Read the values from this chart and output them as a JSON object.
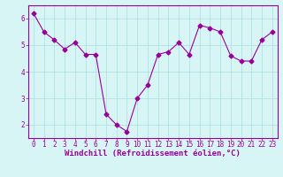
{
  "x": [
    0,
    1,
    2,
    3,
    4,
    5,
    6,
    7,
    8,
    9,
    10,
    11,
    12,
    13,
    14,
    15,
    16,
    17,
    18,
    19,
    20,
    21,
    22,
    23
  ],
  "y": [
    6.2,
    5.5,
    5.2,
    4.85,
    5.1,
    4.65,
    4.65,
    2.4,
    2.0,
    1.75,
    3.0,
    3.5,
    4.65,
    4.75,
    5.1,
    4.65,
    5.75,
    5.65,
    5.5,
    4.6,
    4.4,
    4.4,
    5.2,
    5.5
  ],
  "line_color": "#990099",
  "marker": "D",
  "markersize": 2.5,
  "linewidth": 0.8,
  "bg_color": "#d8f5f5",
  "grid_color": "#aadddd",
  "xlabel": "Windchill (Refroidissement éolien,°C)",
  "ylim": [
    1.5,
    6.5
  ],
  "xlim": [
    -0.5,
    23.5
  ],
  "yticks": [
    2,
    3,
    4,
    5,
    6
  ],
  "ytick_labels": [
    "2",
    "3",
    "4",
    "5",
    "6"
  ],
  "xtick_labels": [
    "0",
    "1",
    "2",
    "3",
    "4",
    "5",
    "6",
    "7",
    "8",
    "9",
    "10",
    "11",
    "12",
    "13",
    "14",
    "15",
    "16",
    "17",
    "18",
    "19",
    "20",
    "21",
    "22",
    "23"
  ],
  "tick_color": "#990099",
  "tick_fontsize": 5.5,
  "xlabel_fontsize": 6.5,
  "axis_color": "#990099",
  "grid_linewidth": 0.5
}
